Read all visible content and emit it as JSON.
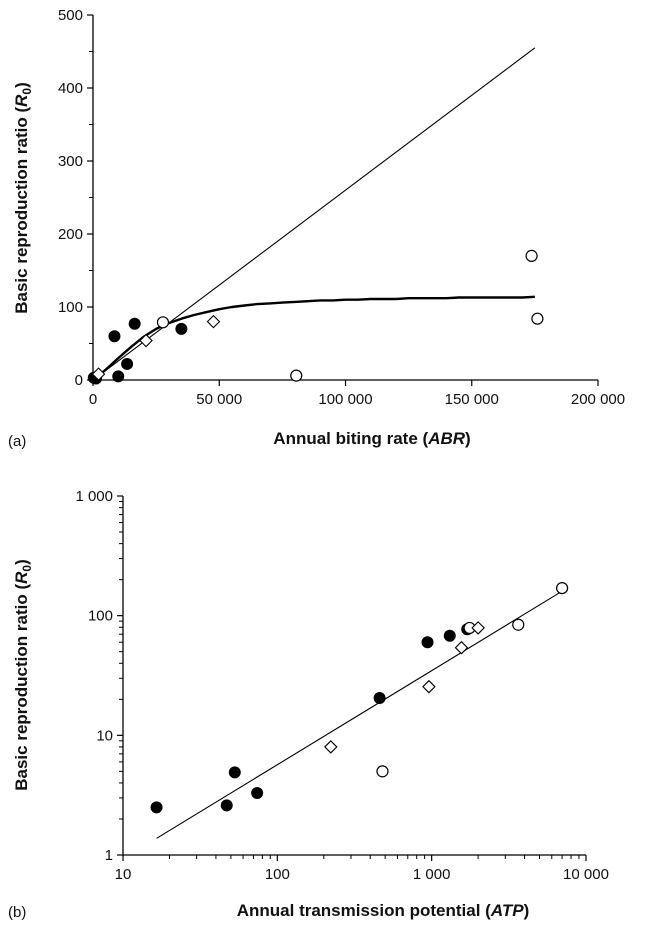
{
  "chart_data": [
    {
      "type": "scatter",
      "panel_label": "(a)",
      "xlabel_parts": [
        "Annual biting rate (",
        "ABR",
        ")"
      ],
      "ylabel_parts": [
        "Basic reproduction ratio (",
        "R",
        "0",
        ")"
      ],
      "xlim": [
        0,
        200000
      ],
      "ylim": [
        0,
        500
      ],
      "x_ticks": [
        0,
        50000,
        100000,
        150000,
        200000
      ],
      "x_tick_labels": [
        "0",
        "50 000",
        "100 000",
        "150 000",
        "200 000"
      ],
      "y_ticks": [
        0,
        100,
        200,
        300,
        400,
        500
      ],
      "y_tick_labels": [
        "0",
        "100",
        "200",
        "300",
        "400",
        "500"
      ],
      "y_minor_step": 50,
      "grid": false,
      "series": [
        {
          "marker": "filled-circle",
          "x": [
            300,
            700,
            1200,
            8500,
            10000,
            13500,
            16500,
            35000
          ],
          "y": [
            3,
            3,
            2,
            60,
            5,
            22,
            77,
            70
          ]
        },
        {
          "marker": "open-circle",
          "x": [
            27700,
            80500,
            173700,
            176000
          ],
          "y": [
            79,
            6,
            170,
            84
          ]
        },
        {
          "marker": "open-diamond",
          "x": [
            2200,
            21000,
            47700
          ],
          "y": [
            8,
            54,
            80
          ]
        }
      ],
      "lines": [
        {
          "kind": "straight",
          "x": [
            0,
            175000
          ],
          "y": [
            0,
            455
          ]
        },
        {
          "kind": "saturating",
          "x": [
            0,
            5000,
            10000,
            15000,
            20000,
            25000,
            30000,
            35000,
            40000,
            45000,
            50000,
            55000,
            60000,
            65000,
            70000,
            75000,
            80000,
            85000,
            90000,
            95000,
            100000,
            105000,
            110000,
            115000,
            120000,
            125000,
            130000,
            135000,
            140000,
            145000,
            150000,
            155000,
            160000,
            165000,
            170000,
            175000
          ],
          "y": [
            0,
            14,
            30,
            45,
            59,
            70,
            78,
            84,
            89,
            93,
            97,
            100,
            102,
            104,
            105,
            106,
            107,
            108,
            109,
            109,
            110,
            110,
            111,
            111,
            111,
            112,
            112,
            112,
            112,
            113,
            113,
            113,
            113,
            113,
            113,
            114
          ]
        }
      ]
    },
    {
      "type": "scatter",
      "panel_label": "(b)",
      "xlabel_parts": [
        "Annual transmission potential (",
        "ATP",
        ")"
      ],
      "ylabel_parts": [
        "Basic reproduction ratio (",
        "R",
        "0",
        ")"
      ],
      "x_scale": "log",
      "y_scale": "log",
      "xlim": [
        10,
        10000
      ],
      "ylim": [
        1,
        1000
      ],
      "x_ticks": [
        10,
        100,
        1000,
        10000
      ],
      "x_tick_labels": [
        "10",
        "100",
        "1 000",
        "10 000"
      ],
      "y_ticks": [
        1,
        10,
        100,
        1000
      ],
      "y_tick_labels": [
        "1",
        "10",
        "100",
        "1 000"
      ],
      "grid": false,
      "series": [
        {
          "marker": "filled-circle",
          "x": [
            16.5,
            47,
            53,
            74,
            460,
            940,
            1310,
            1700
          ],
          "y": [
            2.5,
            2.6,
            4.9,
            3.3,
            20.5,
            60,
            68,
            77
          ]
        },
        {
          "marker": "open-circle",
          "x": [
            480,
            1760,
            3640,
            7000
          ],
          "y": [
            5.0,
            79,
            84,
            170
          ]
        },
        {
          "marker": "open-diamond",
          "x": [
            222,
            960,
            1560,
            2000
          ],
          "y": [
            8.0,
            25.5,
            54,
            79
          ]
        }
      ],
      "lines": [
        {
          "kind": "fit",
          "x": [
            16.5,
            7000
          ],
          "y": [
            1.38,
            160
          ]
        }
      ]
    }
  ]
}
